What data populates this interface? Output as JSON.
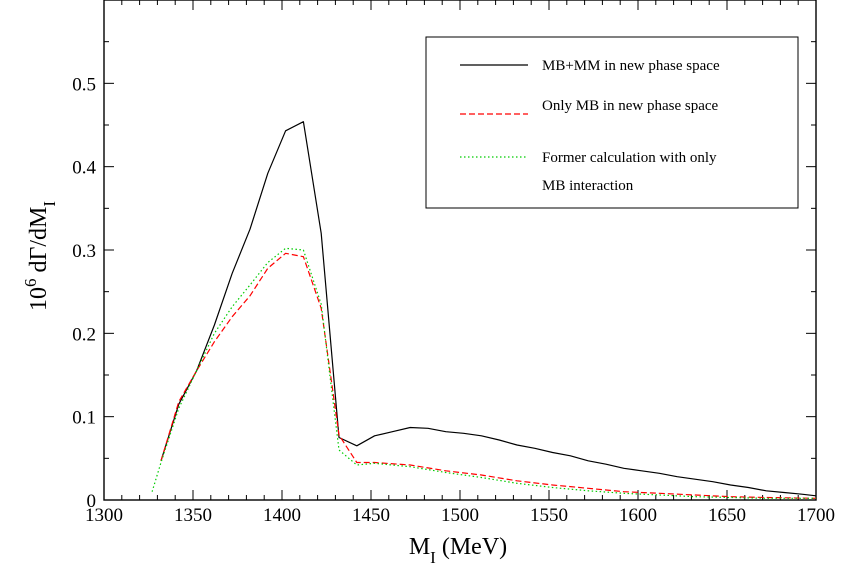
{
  "chart_data": {
    "type": "line",
    "xlabel": {
      "main": "M",
      "sub": "I",
      "unit": " (MeV)"
    },
    "ylabel": {
      "prefix": "10",
      "exp": "6",
      "main": " dΓ/dM",
      "sub": "I"
    },
    "xlim": [
      1300,
      1700
    ],
    "ylim": [
      0,
      0.6
    ],
    "x_ticks": [
      1300,
      1350,
      1400,
      1450,
      1500,
      1550,
      1600,
      1650,
      1700
    ],
    "y_ticks": [
      0,
      0.1,
      0.2,
      0.3,
      0.4,
      0.5
    ],
    "y_tick_labels": [
      "0",
      "0.1",
      "0.2",
      "0.3",
      "0.4",
      "0.5"
    ],
    "grid": false,
    "legend_position": "top-right",
    "series": [
      {
        "name": "MB+MM in new phase space",
        "color": "#000000",
        "dash": "solid",
        "points": [
          [
            1332,
            0.047
          ],
          [
            1342,
            0.115
          ],
          [
            1352,
            0.155
          ],
          [
            1362,
            0.21
          ],
          [
            1372,
            0.272
          ],
          [
            1382,
            0.325
          ],
          [
            1392,
            0.392
          ],
          [
            1402,
            0.443
          ],
          [
            1412,
            0.454
          ],
          [
            1422,
            0.32
          ],
          [
            1432,
            0.075
          ],
          [
            1442,
            0.065
          ],
          [
            1452,
            0.077
          ],
          [
            1462,
            0.082
          ],
          [
            1472,
            0.087
          ],
          [
            1482,
            0.086
          ],
          [
            1492,
            0.082
          ],
          [
            1502,
            0.08
          ],
          [
            1512,
            0.077
          ],
          [
            1522,
            0.072
          ],
          [
            1532,
            0.066
          ],
          [
            1542,
            0.062
          ],
          [
            1552,
            0.057
          ],
          [
            1562,
            0.053
          ],
          [
            1572,
            0.047
          ],
          [
            1582,
            0.043
          ],
          [
            1592,
            0.038
          ],
          [
            1602,
            0.035
          ],
          [
            1612,
            0.032
          ],
          [
            1622,
            0.028
          ],
          [
            1632,
            0.025
          ],
          [
            1642,
            0.022
          ],
          [
            1652,
            0.018
          ],
          [
            1662,
            0.015
          ],
          [
            1672,
            0.011
          ],
          [
            1682,
            0.009
          ],
          [
            1692,
            0.007
          ],
          [
            1700,
            0.005
          ]
        ]
      },
      {
        "name": "Only MB in new phase space",
        "color": "#ff0000",
        "dash": "dashed",
        "points": [
          [
            1332,
            0.047
          ],
          [
            1342,
            0.118
          ],
          [
            1352,
            0.155
          ],
          [
            1362,
            0.19
          ],
          [
            1372,
            0.22
          ],
          [
            1382,
            0.245
          ],
          [
            1392,
            0.278
          ],
          [
            1402,
            0.296
          ],
          [
            1412,
            0.292
          ],
          [
            1422,
            0.23
          ],
          [
            1432,
            0.078
          ],
          [
            1442,
            0.045
          ],
          [
            1452,
            0.045
          ],
          [
            1472,
            0.042
          ],
          [
            1492,
            0.035
          ],
          [
            1512,
            0.03
          ],
          [
            1532,
            0.023
          ],
          [
            1552,
            0.018
          ],
          [
            1572,
            0.014
          ],
          [
            1592,
            0.01
          ],
          [
            1612,
            0.008
          ],
          [
            1632,
            0.006
          ],
          [
            1652,
            0.004
          ],
          [
            1672,
            0.003
          ],
          [
            1700,
            0.002
          ]
        ]
      },
      {
        "name": "Former calculation with only MB interaction",
        "legend_lines": [
          "Former calculation with only",
          "MB interaction"
        ],
        "color": "#00cc00",
        "dash": "dotted",
        "points": [
          [
            1327,
            0.01
          ],
          [
            1332,
            0.045
          ],
          [
            1342,
            0.11
          ],
          [
            1352,
            0.155
          ],
          [
            1362,
            0.2
          ],
          [
            1372,
            0.232
          ],
          [
            1382,
            0.258
          ],
          [
            1392,
            0.285
          ],
          [
            1402,
            0.302
          ],
          [
            1412,
            0.3
          ],
          [
            1422,
            0.235
          ],
          [
            1432,
            0.06
          ],
          [
            1442,
            0.042
          ],
          [
            1452,
            0.044
          ],
          [
            1472,
            0.04
          ],
          [
            1492,
            0.033
          ],
          [
            1512,
            0.027
          ],
          [
            1532,
            0.02
          ],
          [
            1552,
            0.015
          ],
          [
            1572,
            0.011
          ],
          [
            1592,
            0.008
          ],
          [
            1612,
            0.006
          ],
          [
            1632,
            0.004
          ],
          [
            1652,
            0.003
          ],
          [
            1672,
            0.002
          ],
          [
            1700,
            0.002
          ]
        ]
      }
    ]
  }
}
